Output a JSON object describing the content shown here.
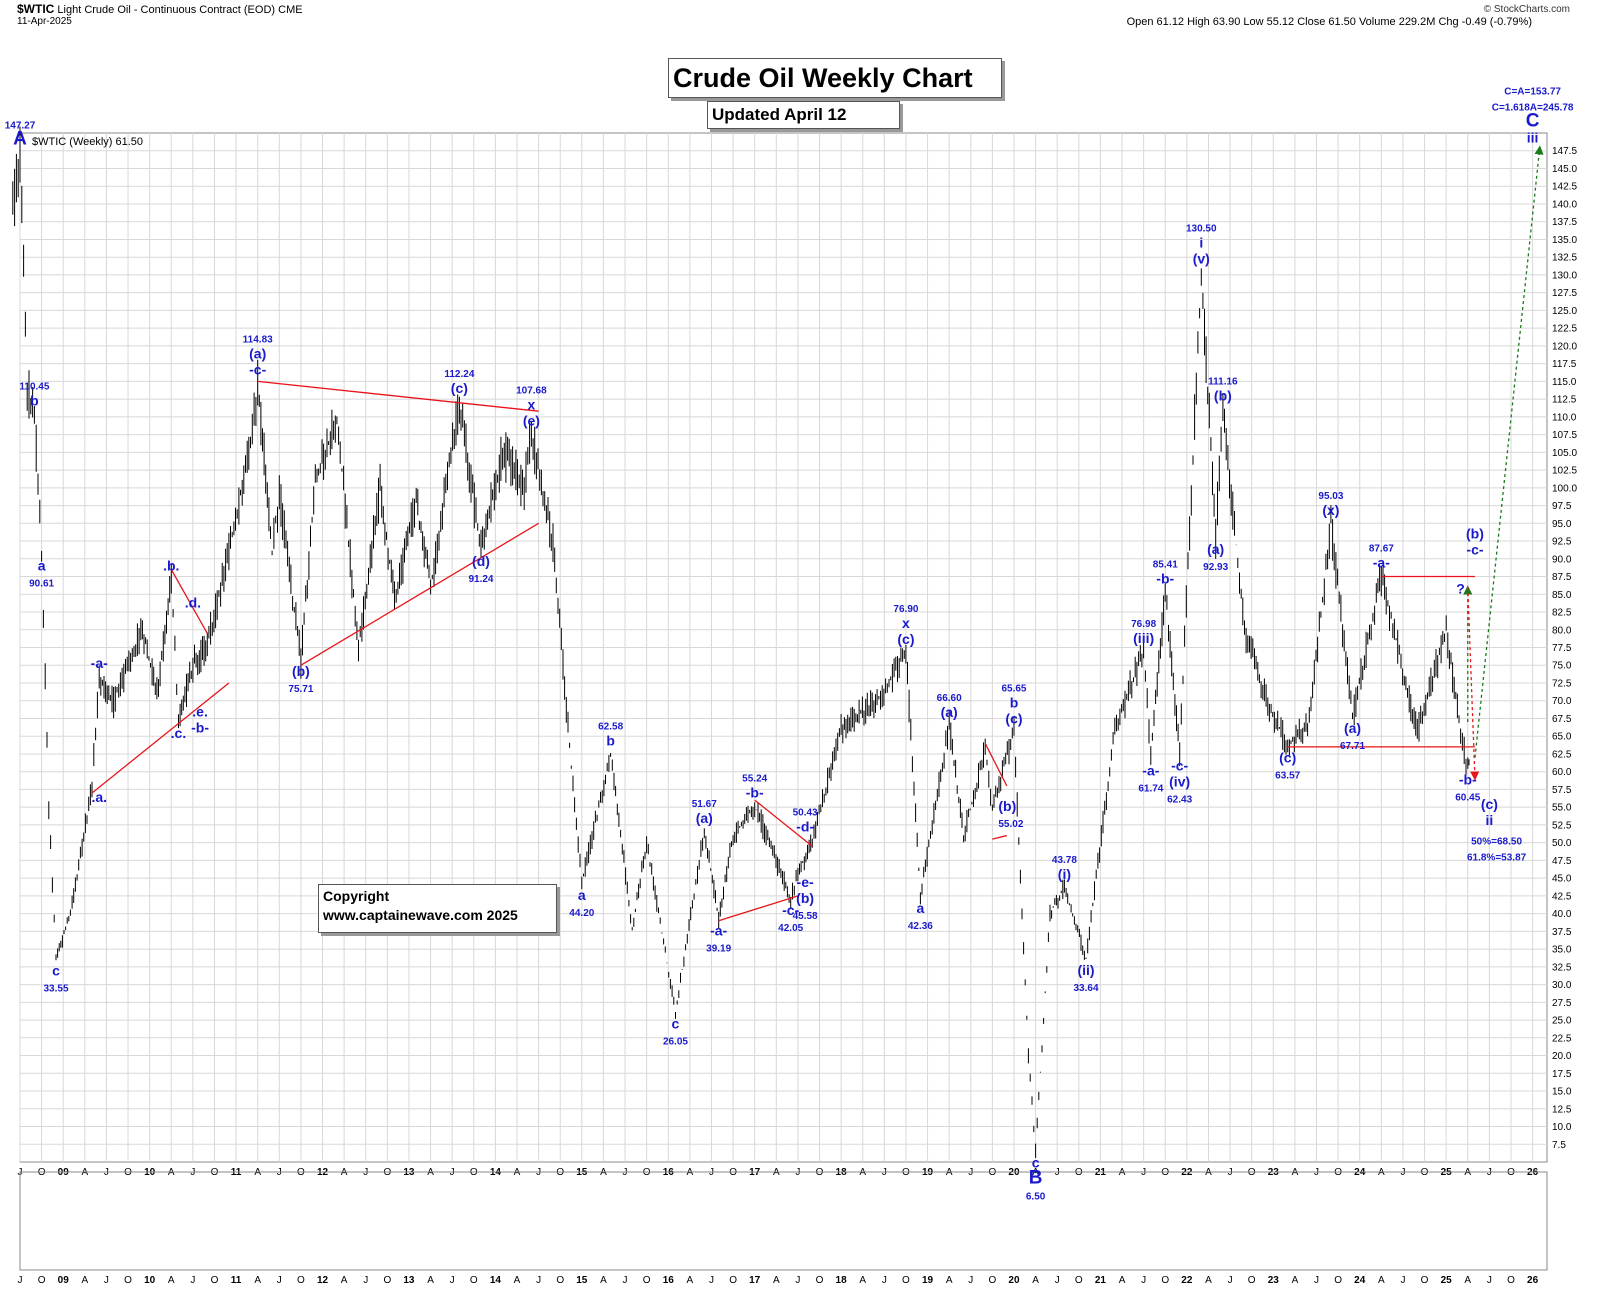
{
  "header": {
    "symbol": "$WTIC",
    "instrument": "Light Crude Oil - Continuous Contract (EOD)",
    "exchange": "CME",
    "date": "11-Apr-2025",
    "stats": "Open 61.12  High 63.90  Low 55.12  Close 61.50  Volume 229.2M  Chg -0.49 (-0.79%)",
    "brand": "© StockCharts.com"
  },
  "title_box": "Crude Oil Weekly Chart",
  "updated_box": "Updated April 12",
  "copyright": {
    "line1": "Copyright",
    "line2": "www.captainewave.com 2025"
  },
  "legend": "$WTIC (Weekly) 61.50",
  "chart_data": {
    "type": "line",
    "style": "weekly OHLC price bars",
    "series": [
      {
        "name": "$WTIC (Weekly)",
        "points": [
          [
            "2008-06",
            140
          ],
          [
            "2008-07",
            147.27
          ],
          [
            "2008-08",
            114
          ],
          [
            "2008-09",
            110.45
          ],
          [
            "2008-10",
            90.61
          ],
          [
            "2008-11",
            55
          ],
          [
            "2008-12",
            33.55
          ],
          [
            "2009-02",
            40
          ],
          [
            "2009-05",
            58
          ],
          [
            "2009-06",
            73.5
          ],
          [
            "2009-08",
            70
          ],
          [
            "2009-12",
            80
          ],
          [
            "2010-02",
            71
          ],
          [
            "2010-04",
            87.2
          ],
          [
            "2010-05",
            67
          ],
          [
            "2010-07",
            75
          ],
          [
            "2010-09",
            78
          ],
          [
            "2010-12",
            91
          ],
          [
            "2011-03",
            106
          ],
          [
            "2011-04",
            114.83
          ],
          [
            "2011-06",
            91
          ],
          [
            "2011-07",
            99
          ],
          [
            "2011-10",
            75.71
          ],
          [
            "2011-12",
            101
          ],
          [
            "2012-03",
            110
          ],
          [
            "2012-06",
            77.3
          ],
          [
            "2012-09",
            100
          ],
          [
            "2012-11",
            84
          ],
          [
            "2013-02",
            98
          ],
          [
            "2013-04",
            86
          ],
          [
            "2013-08",
            112.24
          ],
          [
            "2013-11",
            91.24
          ],
          [
            "2014-02",
            105
          ],
          [
            "2014-05",
            100
          ],
          [
            "2014-06",
            107.68
          ],
          [
            "2014-09",
            92
          ],
          [
            "2014-12",
            55
          ],
          [
            "2015-01",
            44.2
          ],
          [
            "2015-05",
            62.58
          ],
          [
            "2015-08",
            38
          ],
          [
            "2015-10",
            50
          ],
          [
            "2016-02",
            26.05
          ],
          [
            "2016-06",
            51.67
          ],
          [
            "2016-08",
            39.19
          ],
          [
            "2016-10",
            51
          ],
          [
            "2017-01",
            55.24
          ],
          [
            "2017-06",
            42.05
          ],
          [
            "2017-07",
            45.58
          ],
          [
            "2017-09",
            50.43
          ],
          [
            "2018-01",
            66
          ],
          [
            "2018-06",
            70
          ],
          [
            "2018-10",
            76.9
          ],
          [
            "2018-12",
            42.36
          ],
          [
            "2019-04",
            66.6
          ],
          [
            "2019-06",
            51
          ],
          [
            "2019-09",
            63
          ],
          [
            "2019-10",
            55.02
          ],
          [
            "2020-01",
            65.65
          ],
          [
            "2020-03",
            20
          ],
          [
            "2020-04",
            6.5
          ],
          [
            "2020-06",
            40
          ],
          [
            "2020-08",
            43.78
          ],
          [
            "2020-11",
            33.64
          ],
          [
            "2021-03",
            66
          ],
          [
            "2021-07",
            76.98
          ],
          [
            "2021-08",
            61.74
          ],
          [
            "2021-10",
            85.41
          ],
          [
            "2021-12",
            62.43
          ],
          [
            "2022-03",
            130.5
          ],
          [
            "2022-05",
            92.93
          ],
          [
            "2022-06",
            111.16
          ],
          [
            "2022-09",
            80
          ],
          [
            "2022-12",
            70
          ],
          [
            "2023-03",
            63.57
          ],
          [
            "2023-06",
            67
          ],
          [
            "2023-09",
            95.03
          ],
          [
            "2023-12",
            67.71
          ],
          [
            "2024-04",
            87.67
          ],
          [
            "2024-09",
            65.3
          ],
          [
            "2025-01",
            80
          ],
          [
            "2025-03",
            65.5
          ],
          [
            "2025-04",
            60.45
          ],
          [
            "2025-04-11",
            61.5
          ]
        ]
      }
    ],
    "ylim": [
      5,
      150
    ],
    "y_ticks": [
      7.5,
      10,
      12.5,
      15,
      17.5,
      20,
      22.5,
      25,
      27.5,
      30,
      32.5,
      35,
      37.5,
      40,
      42.5,
      45,
      47.5,
      50,
      52.5,
      55,
      57.5,
      60,
      62.5,
      65,
      67.5,
      70,
      72.5,
      75,
      77.5,
      80,
      82.5,
      85,
      87.5,
      90,
      92.5,
      95,
      97.5,
      100,
      102.5,
      105,
      107.5,
      110,
      112.5,
      115,
      117.5,
      120,
      122.5,
      125,
      127.5,
      130,
      132.5,
      135,
      137.5,
      140,
      142.5,
      145,
      147.5
    ],
    "x_range": [
      "2008-07",
      "2026-03"
    ],
    "x_ticks": [
      [
        "2008-07",
        "J"
      ],
      [
        "2008-10",
        "O"
      ],
      [
        "2009-01",
        "09"
      ],
      [
        "2009-04",
        "A"
      ],
      [
        "2009-07",
        "J"
      ],
      [
        "2009-10",
        "O"
      ],
      [
        "2010-01",
        "10"
      ],
      [
        "2010-04",
        "A"
      ],
      [
        "2010-07",
        "J"
      ],
      [
        "2010-10",
        "O"
      ],
      [
        "2011-01",
        "11"
      ],
      [
        "2011-04",
        "A"
      ],
      [
        "2011-07",
        "J"
      ],
      [
        "2011-10",
        "O"
      ],
      [
        "2012-01",
        "12"
      ],
      [
        "2012-04",
        "A"
      ],
      [
        "2012-07",
        "J"
      ],
      [
        "2012-10",
        "O"
      ],
      [
        "2013-01",
        "13"
      ],
      [
        "2013-04",
        "A"
      ],
      [
        "2013-07",
        "J"
      ],
      [
        "2013-10",
        "O"
      ],
      [
        "2014-01",
        "14"
      ],
      [
        "2014-04",
        "A"
      ],
      [
        "2014-07",
        "J"
      ],
      [
        "2014-10",
        "O"
      ],
      [
        "2015-01",
        "15"
      ],
      [
        "2015-04",
        "A"
      ],
      [
        "2015-07",
        "J"
      ],
      [
        "2015-10",
        "O"
      ],
      [
        "2016-01",
        "16"
      ],
      [
        "2016-04",
        "A"
      ],
      [
        "2016-07",
        "J"
      ],
      [
        "2016-10",
        "O"
      ],
      [
        "2017-01",
        "17"
      ],
      [
        "2017-04",
        "A"
      ],
      [
        "2017-07",
        "J"
      ],
      [
        "2017-10",
        "O"
      ],
      [
        "2018-01",
        "18"
      ],
      [
        "2018-04",
        "A"
      ],
      [
        "2018-07",
        "J"
      ],
      [
        "2018-10",
        "O"
      ],
      [
        "2019-01",
        "19"
      ],
      [
        "2019-04",
        "A"
      ],
      [
        "2019-07",
        "J"
      ],
      [
        "2019-10",
        "O"
      ],
      [
        "2020-01",
        "20"
      ],
      [
        "2020-04",
        "A"
      ],
      [
        "2020-07",
        "J"
      ],
      [
        "2020-10",
        "O"
      ],
      [
        "2021-01",
        "21"
      ],
      [
        "2021-04",
        "A"
      ],
      [
        "2021-07",
        "J"
      ],
      [
        "2021-10",
        "O"
      ],
      [
        "2022-01",
        "22"
      ],
      [
        "2022-04",
        "A"
      ],
      [
        "2022-07",
        "J"
      ],
      [
        "2022-10",
        "O"
      ],
      [
        "2023-01",
        "23"
      ],
      [
        "2023-04",
        "A"
      ],
      [
        "2023-07",
        "J"
      ],
      [
        "2023-10",
        "O"
      ],
      [
        "2024-01",
        "24"
      ],
      [
        "2024-04",
        "A"
      ],
      [
        "2024-07",
        "J"
      ],
      [
        "2024-10",
        "O"
      ],
      [
        "2025-01",
        "25"
      ],
      [
        "2025-04",
        "A"
      ],
      [
        "2025-07",
        "J"
      ],
      [
        "2025-10",
        "O"
      ],
      [
        "2026-01",
        "26"
      ]
    ],
    "grid": true,
    "annotations": [
      {
        "t": "2008-07",
        "y": 147.27,
        "lines": [
          "147.27",
          "A"
        ],
        "pos": "above"
      },
      {
        "t": "2008-09",
        "y": 110.45,
        "lines": [
          "110.45",
          "b"
        ],
        "pos": "above"
      },
      {
        "t": "2008-10",
        "y": 90.61,
        "lines": [
          "a",
          "90.61"
        ],
        "pos": "below"
      },
      {
        "t": "2008-12",
        "y": 33.55,
        "lines": [
          "c",
          "33.55"
        ],
        "pos": "below"
      },
      {
        "t": "2009-06",
        "y": 58,
        "lines": [
          ".a."
        ],
        "pos": "below"
      },
      {
        "t": "2009-06",
        "y": 73.5,
        "lines": [
          "-a-"
        ],
        "pos": "above"
      },
      {
        "t": "2010-04",
        "y": 87.2,
        "lines": [
          ".b."
        ],
        "pos": "above"
      },
      {
        "t": "2010-07",
        "y": 82,
        "lines": [
          ".d."
        ],
        "pos": "above"
      },
      {
        "t": "2010-05",
        "y": 67,
        "lines": [
          ".c."
        ],
        "pos": "below"
      },
      {
        "t": "2010-08",
        "y": 70,
        "lines": [
          ".e.",
          "-b-"
        ],
        "pos": "below"
      },
      {
        "t": "2011-04",
        "y": 114.83,
        "lines": [
          "114.83",
          "(a)",
          "-c-"
        ],
        "pos": "above"
      },
      {
        "t": "2011-10",
        "y": 75.71,
        "lines": [
          "(b)",
          "75.71"
        ],
        "pos": "below"
      },
      {
        "t": "2013-08",
        "y": 112.24,
        "lines": [
          "112.24",
          "(c)"
        ],
        "pos": "above"
      },
      {
        "t": "2013-11",
        "y": 91.24,
        "lines": [
          "(d)",
          "91.24"
        ],
        "pos": "below"
      },
      {
        "t": "2014-06",
        "y": 107.68,
        "lines": [
          "107.68",
          "x",
          "(e)"
        ],
        "pos": "above"
      },
      {
        "t": "2015-01",
        "y": 44.2,
        "lines": [
          "a",
          "44.20"
        ],
        "pos": "below"
      },
      {
        "t": "2015-05",
        "y": 62.58,
        "lines": [
          "62.58",
          "b"
        ],
        "pos": "above"
      },
      {
        "t": "2016-02",
        "y": 26.05,
        "lines": [
          "c",
          "26.05"
        ],
        "pos": "below"
      },
      {
        "t": "2016-06",
        "y": 51.67,
        "lines": [
          "51.67",
          "(a)"
        ],
        "pos": "above"
      },
      {
        "t": "2016-08",
        "y": 39.19,
        "lines": [
          "-a-",
          "39.19"
        ],
        "pos": "below"
      },
      {
        "t": "2017-01",
        "y": 55.24,
        "lines": [
          "55.24",
          "-b-"
        ],
        "pos": "above"
      },
      {
        "t": "2017-06",
        "y": 42.05,
        "lines": [
          "-c-",
          "42.05"
        ],
        "pos": "below"
      },
      {
        "t": "2017-08",
        "y": 50.43,
        "lines": [
          "50.43",
          "-d-"
        ],
        "pos": "above"
      },
      {
        "t": "2017-08",
        "y": 46,
        "lines": [
          "-e-",
          "(b)",
          "45.58"
        ],
        "pos": "below"
      },
      {
        "t": "2018-10",
        "y": 76.9,
        "lines": [
          "76.90",
          "x",
          "(c)"
        ],
        "pos": "above"
      },
      {
        "t": "2018-12",
        "y": 42.36,
        "lines": [
          "a",
          "42.36"
        ],
        "pos": "below"
      },
      {
        "t": "2019-04",
        "y": 66.6,
        "lines": [
          "66.60",
          "(a)"
        ],
        "pos": "above"
      },
      {
        "t": "2019-10",
        "y": 55.02,
        "lines": [
          "(b)",
          "55.02"
        ],
        "pos": "right"
      },
      {
        "t": "2020-01",
        "y": 65.65,
        "lines": [
          "65.65",
          "b",
          "(c)"
        ],
        "pos": "above"
      },
      {
        "t": "2020-04",
        "y": 6.5,
        "lines": [
          "c",
          "B",
          "6.50"
        ],
        "pos": "below"
      },
      {
        "t": "2020-08",
        "y": 43.78,
        "lines": [
          "43.78",
          "(i)"
        ],
        "pos": "above"
      },
      {
        "t": "2020-11",
        "y": 33.64,
        "lines": [
          "(ii)",
          "33.64"
        ],
        "pos": "below"
      },
      {
        "t": "2021-07",
        "y": 76.98,
        "lines": [
          "76.98",
          "(iii)"
        ],
        "pos": "above"
      },
      {
        "t": "2021-08",
        "y": 61.74,
        "lines": [
          "-a-",
          "61.74"
        ],
        "pos": "below"
      },
      {
        "t": "2021-10",
        "y": 85.41,
        "lines": [
          "85.41",
          "-b-"
        ],
        "pos": "above"
      },
      {
        "t": "2021-12",
        "y": 62.43,
        "lines": [
          "-c-",
          "(iv)",
          "62.43"
        ],
        "pos": "below"
      },
      {
        "t": "2022-03",
        "y": 130.5,
        "lines": [
          "130.50",
          "i",
          "(v)"
        ],
        "pos": "above"
      },
      {
        "t": "2022-05",
        "y": 92.93,
        "lines": [
          "(a)",
          "92.93"
        ],
        "pos": "below"
      },
      {
        "t": "2022-06",
        "y": 111.16,
        "lines": [
          "111.16",
          "(b)"
        ],
        "pos": "above"
      },
      {
        "t": "2023-03",
        "y": 63.57,
        "lines": [
          "(c)",
          "63.57"
        ],
        "pos": "below"
      },
      {
        "t": "2023-09",
        "y": 95.03,
        "lines": [
          "95.03",
          "(x)"
        ],
        "pos": "above"
      },
      {
        "t": "2023-12",
        "y": 67.71,
        "lines": [
          "(a)",
          "67.71"
        ],
        "pos": "below"
      },
      {
        "t": "2024-04",
        "y": 87.67,
        "lines": [
          "87.67",
          "-a-"
        ],
        "pos": "above"
      },
      {
        "t": "2025-03",
        "y": 84,
        "lines": [
          "?"
        ],
        "pos": "above"
      },
      {
        "t": "2025-04",
        "y": 60.45,
        "lines": [
          "-b-",
          "60.45"
        ],
        "pos": "below"
      },
      {
        "t": "2025-05",
        "y": 89.5,
        "lines": [
          "(b)",
          "-c-"
        ],
        "pos": "above"
      },
      {
        "t": "2025-07",
        "y": 57,
        "lines": [
          "(c)",
          "ii"
        ],
        "pos": "below"
      },
      {
        "t": "2025-08",
        "y": 52,
        "lines": [
          "50%=68.50",
          "61.8%=53.87"
        ],
        "pos": "below"
      },
      {
        "t": "2026-01",
        "y": 147.5,
        "lines": [
          "C=A=153.77",
          "C=1.618A=245.78",
          "C",
          "iii"
        ],
        "pos": "above"
      }
    ],
    "trendlines": [
      {
        "color": "#e8141a",
        "from": [
          "2009-05",
          57
        ],
        "to": [
          "2010-12",
          72.5
        ]
      },
      {
        "color": "#e8141a",
        "from": [
          "2010-04",
          88.5
        ],
        "to": [
          "2010-09",
          79.5
        ]
      },
      {
        "color": "#e8141a",
        "from": [
          "2011-04",
          115
        ],
        "to": [
          "2014-07",
          110.8
        ]
      },
      {
        "color": "#e8141a",
        "from": [
          "2011-10",
          75
        ],
        "to": [
          "2014-07",
          95
        ]
      },
      {
        "color": "#e8141a",
        "from": [
          "2016-08",
          39
        ],
        "to": [
          "2017-07",
          42.5
        ]
      },
      {
        "color": "#e8141a",
        "from": [
          "2017-01",
          56
        ],
        "to": [
          "2017-09",
          49.5
        ]
      },
      {
        "color": "#e8141a",
        "from": [
          "2019-09",
          64
        ],
        "to": [
          "2019-12",
          58
        ]
      },
      {
        "color": "#e8141a",
        "from": [
          "2019-10",
          50.5
        ],
        "to": [
          "2019-12",
          51
        ]
      },
      {
        "color": "#e8141a",
        "from": [
          "2024-04",
          87.5
        ],
        "to": [
          "2025-05",
          87.5
        ]
      },
      {
        "color": "#e8141a",
        "from": [
          "2023-03",
          63.5
        ],
        "to": [
          "2025-05",
          63.5
        ]
      }
    ],
    "projections": [
      {
        "color": "#1a7a1a",
        "from": [
          "2025-04",
          67
        ],
        "to": [
          "2025-04",
          86
        ]
      },
      {
        "color": "#e8141a",
        "from": [
          "2025-04",
          86
        ],
        "to": [
          "2025-05",
          59
        ]
      },
      {
        "color": "#1a7a1a",
        "from": [
          "2025-05",
          62
        ],
        "to": [
          "2026-02",
          148
        ]
      }
    ]
  }
}
